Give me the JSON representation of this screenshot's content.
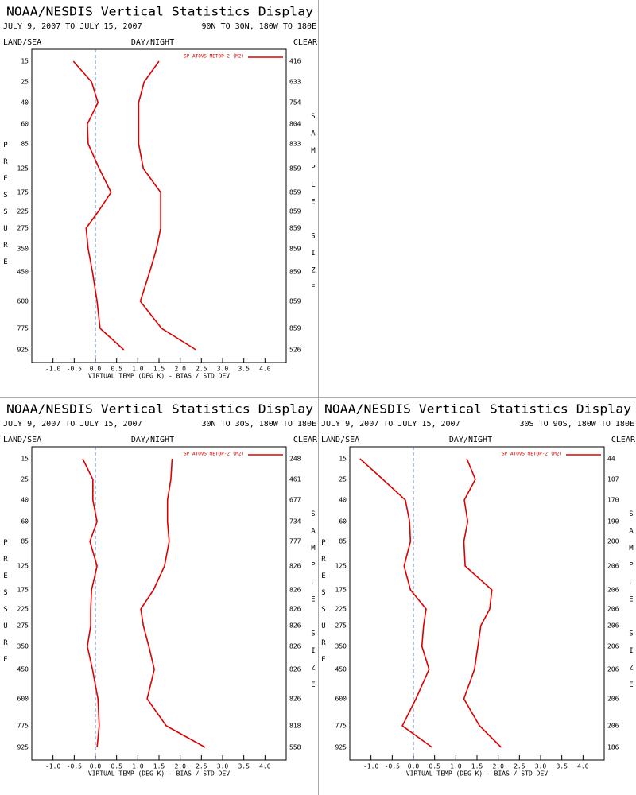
{
  "chart_data": [
    {
      "type": "line",
      "title": "NOAA/NESDIS Vertical Statistics Display",
      "date_range": "JULY 9, 2007 TO JULY 15, 2007",
      "region": "90N TO 30N, 180W TO 180E",
      "left_label": "LAND/SEA",
      "center_label": "DAY/NIGHT",
      "right_label": "CLEAR",
      "ylabel": "PRESSURE",
      "y2label": "SAMPLE SIZE",
      "xlabel": "VIRTUAL TEMP (DEG K) - BIAS / STD DEV",
      "categories": [
        15,
        25,
        40,
        60,
        85,
        125,
        175,
        225,
        275,
        350,
        450,
        600,
        775,
        925
      ],
      "series": [
        {
          "name": "SP ATOVS METOP-2 (M2)",
          "color": "#dd0000",
          "values": [
            -0.52,
            -0.09,
            0.06,
            -0.19,
            -0.17,
            0.09,
            0.37,
            0.07,
            -0.22,
            -0.17,
            -0.07,
            0.04,
            0.11,
            0.67
          ]
        },
        {
          "color": "#dd0000",
          "values": [
            1.5,
            1.15,
            1.02,
            1.02,
            1.02,
            1.13,
            1.54,
            1.54,
            1.54,
            1.44,
            1.28,
            1.06,
            1.56,
            2.37
          ]
        }
      ],
      "sample_size": [
        416,
        633,
        754,
        804,
        833,
        859,
        859,
        859,
        859,
        859,
        859,
        859,
        859,
        526
      ],
      "xlim": [
        -1.5,
        4.5
      ],
      "xticks": [
        {
          "value": -1,
          "label": "-1.0"
        },
        {
          "value": -0.5,
          "label": "-0.5"
        },
        {
          "value": 0,
          "label": "0.0"
        },
        {
          "value": 0.5,
          "label": "0.5"
        },
        {
          "value": 1,
          "label": "1.0"
        },
        {
          "value": 1.5,
          "label": "1.5"
        },
        {
          "value": 2,
          "label": "2.0"
        },
        {
          "value": 2.5,
          "label": "2.5"
        },
        {
          "value": 3,
          "label": "3.0"
        },
        {
          "value": 3.5,
          "label": "3.5"
        },
        {
          "value": 4,
          "label": "4.0"
        }
      ]
    },
    {
      "type": "line",
      "title": "NOAA/NESDIS Vertical Statistics Display",
      "date_range": "JULY 9, 2007 TO JULY 15, 2007",
      "region": "30N TO 30S, 180W TO 180E",
      "left_label": "LAND/SEA",
      "center_label": "DAY/NIGHT",
      "right_label": "CLEAR",
      "ylabel": "PRESSURE",
      "y2label": "SAMPLE SIZE",
      "xlabel": "VIRTUAL TEMP (DEG K) - BIAS / STD DEV",
      "categories": [
        15,
        25,
        40,
        60,
        85,
        125,
        175,
        225,
        275,
        350,
        450,
        600,
        775,
        925
      ],
      "series": [
        {
          "name": "SP ATOVS METOP-2 (M2)",
          "color": "#dd0000",
          "values": [
            -0.3,
            -0.06,
            -0.06,
            0.04,
            -0.13,
            0.04,
            -0.09,
            -0.11,
            -0.11,
            -0.19,
            -0.07,
            0.06,
            0.09,
            0.04
          ]
        },
        {
          "color": "#dd0000",
          "values": [
            1.81,
            1.78,
            1.7,
            1.7,
            1.74,
            1.63,
            1.37,
            1.07,
            1.13,
            1.26,
            1.39,
            1.22,
            1.67,
            2.59
          ]
        }
      ],
      "sample_size": [
        248,
        461,
        677,
        734,
        777,
        826,
        826,
        826,
        826,
        826,
        826,
        826,
        818,
        558
      ],
      "xlim": [
        -1.5,
        4.5
      ],
      "xticks": [
        {
          "value": -1,
          "label": "-1.0"
        },
        {
          "value": -0.5,
          "label": "-0.5"
        },
        {
          "value": 0,
          "label": "0.0"
        },
        {
          "value": 0.5,
          "label": "0.5"
        },
        {
          "value": 1,
          "label": "1.0"
        },
        {
          "value": 1.5,
          "label": "1.5"
        },
        {
          "value": 2,
          "label": "2.0"
        },
        {
          "value": 2.5,
          "label": "2.5"
        },
        {
          "value": 3,
          "label": "3.0"
        },
        {
          "value": 3.5,
          "label": "3.5"
        },
        {
          "value": 4,
          "label": "4.0"
        }
      ]
    },
    {
      "type": "line",
      "title": "NOAA/NESDIS Vertical Statistics Display",
      "date_range": "JULY 9, 2007 TO JULY 15, 2007",
      "region": "30S TO 90S, 180W TO 180E",
      "left_label": "LAND/SEA",
      "center_label": "DAY/NIGHT",
      "right_label": "CLEAR",
      "ylabel": "PRESSURE",
      "y2label": "SAMPLE SIZE",
      "xlabel": "VIRTUAL TEMP (DEG K) - BIAS / STD DEV",
      "categories": [
        15,
        25,
        40,
        60,
        85,
        125,
        175,
        225,
        275,
        350,
        450,
        600,
        775,
        925
      ],
      "series": [
        {
          "name": "SP ATOVS METOP-2 (M2)",
          "color": "#dd0000",
          "values": [
            -1.26,
            -0.72,
            -0.19,
            -0.09,
            -0.07,
            -0.22,
            -0.07,
            0.3,
            0.24,
            0.2,
            0.37,
            0.06,
            -0.26,
            0.44
          ]
        },
        {
          "color": "#dd0000",
          "values": [
            1.26,
            1.46,
            1.2,
            1.28,
            1.19,
            1.22,
            1.85,
            1.8,
            1.59,
            1.52,
            1.44,
            1.19,
            1.56,
            2.07
          ]
        }
      ],
      "sample_size": [
        44,
        107,
        170,
        190,
        200,
        206,
        206,
        206,
        206,
        206,
        206,
        206,
        206,
        186
      ],
      "xlim": [
        -1.5,
        4.5
      ],
      "xticks": [
        {
          "value": -1,
          "label": "-1.0"
        },
        {
          "value": -0.5,
          "label": "-0.5"
        },
        {
          "value": 0,
          "label": "0.0"
        },
        {
          "value": 0.5,
          "label": "0.5"
        },
        {
          "value": 1,
          "label": "1.0"
        },
        {
          "value": 1.5,
          "label": "1.5"
        },
        {
          "value": 2,
          "label": "2.0"
        },
        {
          "value": 2.5,
          "label": "2.5"
        },
        {
          "value": 3,
          "label": "3.0"
        },
        {
          "value": 3.5,
          "label": "3.5"
        },
        {
          "value": 4,
          "label": "4.0"
        }
      ]
    }
  ]
}
